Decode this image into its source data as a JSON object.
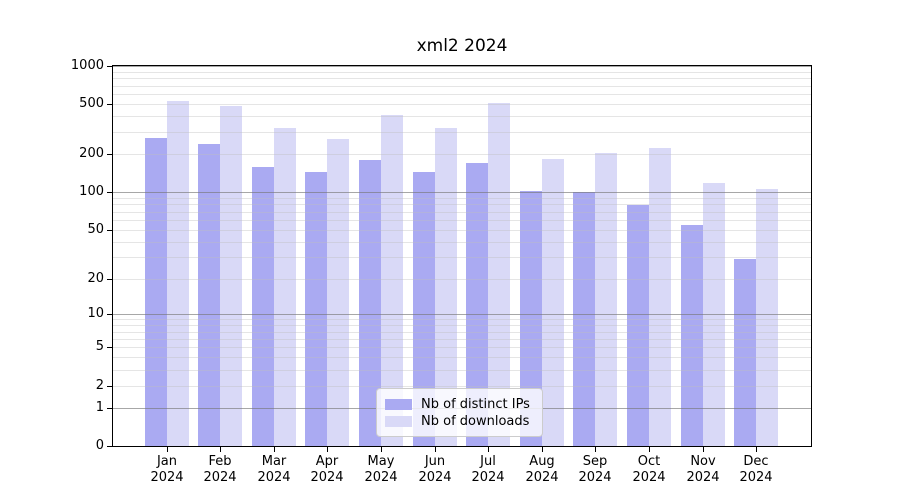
{
  "title": "xml2 2024",
  "chart_data": {
    "type": "bar",
    "title": "xml2 2024",
    "year": "2024",
    "categories": [
      "Jan",
      "Feb",
      "Mar",
      "Apr",
      "May",
      "Jun",
      "Jul",
      "Aug",
      "Sep",
      "Oct",
      "Nov",
      "Dec"
    ],
    "series": [
      {
        "name": "Nb of distinct IPs",
        "key": "distinct-ips",
        "color": "#aaaaf2",
        "values": [
          268,
          242,
          160,
          144,
          180,
          144,
          170,
          103,
          100,
          79,
          55,
          29
        ]
      },
      {
        "name": "Nb of downloads",
        "key": "downloads",
        "color": "#d9d9f7",
        "values": [
          525,
          480,
          325,
          264,
          410,
          322,
          510,
          185,
          205,
          224,
          119,
          106
        ]
      }
    ],
    "yscale": "log1p",
    "ylim": [
      0,
      1000
    ],
    "y_ticks": [
      0,
      1,
      2,
      5,
      10,
      20,
      50,
      100,
      200,
      500,
      1000
    ],
    "grid": {
      "enabled": true,
      "major_color": "#787878",
      "minor_color": "#bebebe"
    },
    "legend": {
      "position": "lower center",
      "items": [
        "Nb of distinct IPs",
        "Nb of downloads"
      ]
    },
    "axis_color": "#000000",
    "background_color": "#ffffff"
  }
}
